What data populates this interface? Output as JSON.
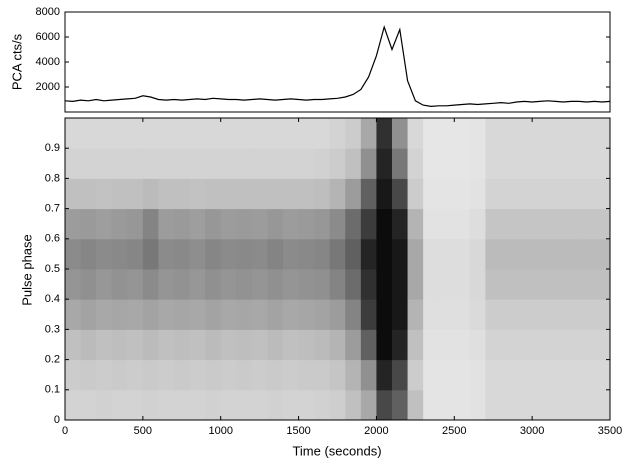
{
  "chart_data": [
    {
      "type": "line",
      "ylabel": "PCA cts/s",
      "color": "#000000",
      "x": [
        0,
        50,
        100,
        150,
        200,
        250,
        300,
        350,
        400,
        450,
        500,
        550,
        600,
        650,
        700,
        750,
        800,
        850,
        900,
        950,
        1000,
        1050,
        1100,
        1150,
        1200,
        1250,
        1300,
        1350,
        1400,
        1450,
        1500,
        1550,
        1600,
        1650,
        1700,
        1750,
        1800,
        1850,
        1900,
        1950,
        2000,
        2050,
        2100,
        2150,
        2200,
        2250,
        2300,
        2350,
        2400,
        2450,
        2500,
        2550,
        2600,
        2650,
        2700,
        2750,
        2800,
        2850,
        2900,
        2950,
        3000,
        3050,
        3100,
        3150,
        3200,
        3250,
        3300,
        3350,
        3400,
        3450,
        3500
      ],
      "values": [
        900,
        850,
        950,
        900,
        1000,
        900,
        950,
        1000,
        1050,
        1100,
        1300,
        1200,
        1000,
        950,
        1000,
        950,
        1000,
        1050,
        1000,
        1100,
        1050,
        1000,
        1000,
        950,
        1000,
        1050,
        1000,
        950,
        1000,
        1050,
        1000,
        950,
        1000,
        1000,
        1050,
        1100,
        1200,
        1400,
        1800,
        2800,
        4500,
        6800,
        5000,
        6600,
        2500,
        900,
        550,
        450,
        500,
        500,
        550,
        600,
        650,
        600,
        650,
        700,
        750,
        700,
        800,
        850,
        800,
        850,
        900,
        850,
        800,
        850,
        850,
        800,
        850,
        800,
        850
      ],
      "xlim": [
        0,
        3500
      ],
      "ylim": [
        0,
        8000
      ],
      "yticks": [
        2000,
        4000,
        6000,
        8000
      ]
    },
    {
      "type": "heatmap",
      "xlabel": "Time (seconds)",
      "ylabel": "Pulse phase",
      "time_bins": [
        0,
        100,
        200,
        300,
        400,
        500,
        600,
        700,
        800,
        900,
        1000,
        1100,
        1200,
        1300,
        1400,
        1500,
        1600,
        1700,
        1800,
        1900,
        2000,
        2100,
        2200,
        2300,
        2400,
        2500,
        2600,
        2700,
        2800,
        2900,
        3000,
        3100,
        3200,
        3300,
        3400,
        3500
      ],
      "phase_bins": [
        0,
        0.1,
        0.2,
        0.3,
        0.4,
        0.5,
        0.6,
        0.7,
        0.8,
        0.9,
        1
      ],
      "z": [
        [
          0.12,
          0.15,
          0.2,
          0.3,
          0.38,
          0.42,
          0.35,
          0.2,
          0.12,
          0.1
        ],
        [
          0.12,
          0.16,
          0.22,
          0.32,
          0.4,
          0.44,
          0.36,
          0.2,
          0.12,
          0.1
        ],
        [
          0.13,
          0.15,
          0.2,
          0.3,
          0.37,
          0.42,
          0.34,
          0.19,
          0.12,
          0.1
        ],
        [
          0.12,
          0.16,
          0.21,
          0.31,
          0.39,
          0.43,
          0.36,
          0.2,
          0.12,
          0.1
        ],
        [
          0.12,
          0.15,
          0.2,
          0.3,
          0.38,
          0.44,
          0.37,
          0.2,
          0.12,
          0.1
        ],
        [
          0.13,
          0.16,
          0.22,
          0.32,
          0.42,
          0.5,
          0.45,
          0.22,
          0.12,
          0.1
        ],
        [
          0.12,
          0.15,
          0.2,
          0.3,
          0.38,
          0.42,
          0.35,
          0.2,
          0.12,
          0.1
        ],
        [
          0.12,
          0.16,
          0.21,
          0.31,
          0.39,
          0.43,
          0.36,
          0.2,
          0.12,
          0.1
        ],
        [
          0.12,
          0.15,
          0.2,
          0.3,
          0.37,
          0.41,
          0.34,
          0.19,
          0.12,
          0.1
        ],
        [
          0.13,
          0.16,
          0.22,
          0.32,
          0.4,
          0.44,
          0.37,
          0.2,
          0.12,
          0.1
        ],
        [
          0.12,
          0.15,
          0.2,
          0.3,
          0.38,
          0.42,
          0.35,
          0.2,
          0.12,
          0.1
        ],
        [
          0.12,
          0.16,
          0.21,
          0.31,
          0.39,
          0.43,
          0.36,
          0.2,
          0.12,
          0.1
        ],
        [
          0.12,
          0.15,
          0.2,
          0.3,
          0.38,
          0.42,
          0.35,
          0.2,
          0.12,
          0.1
        ],
        [
          0.13,
          0.16,
          0.22,
          0.32,
          0.4,
          0.45,
          0.37,
          0.2,
          0.12,
          0.1
        ],
        [
          0.12,
          0.15,
          0.2,
          0.3,
          0.38,
          0.42,
          0.35,
          0.2,
          0.12,
          0.1
        ],
        [
          0.12,
          0.16,
          0.21,
          0.31,
          0.39,
          0.43,
          0.36,
          0.2,
          0.12,
          0.1
        ],
        [
          0.13,
          0.16,
          0.22,
          0.32,
          0.4,
          0.44,
          0.37,
          0.21,
          0.13,
          0.1
        ],
        [
          0.14,
          0.18,
          0.25,
          0.35,
          0.45,
          0.5,
          0.42,
          0.25,
          0.15,
          0.12
        ],
        [
          0.2,
          0.25,
          0.35,
          0.45,
          0.55,
          0.6,
          0.55,
          0.35,
          0.2,
          0.15
        ],
        [
          0.3,
          0.4,
          0.6,
          0.75,
          0.8,
          0.85,
          0.75,
          0.6,
          0.4,
          0.3
        ],
        [
          0.7,
          0.85,
          0.95,
          0.95,
          0.95,
          0.95,
          0.95,
          0.9,
          0.85,
          0.8
        ],
        [
          0.6,
          0.7,
          0.85,
          0.9,
          0.9,
          0.9,
          0.85,
          0.7,
          0.5,
          0.4
        ],
        [
          0.2,
          0.15,
          0.2,
          0.25,
          0.3,
          0.3,
          0.25,
          0.15,
          0.12,
          0.1
        ],
        [
          0.05,
          0.05,
          0.06,
          0.07,
          0.08,
          0.08,
          0.06,
          0.05,
          0.04,
          0.04
        ],
        [
          0.05,
          0.05,
          0.06,
          0.07,
          0.08,
          0.08,
          0.06,
          0.05,
          0.04,
          0.04
        ],
        [
          0.05,
          0.05,
          0.06,
          0.07,
          0.08,
          0.08,
          0.06,
          0.05,
          0.04,
          0.04
        ],
        [
          0.06,
          0.06,
          0.07,
          0.09,
          0.1,
          0.1,
          0.08,
          0.06,
          0.05,
          0.05
        ],
        [
          0.1,
          0.1,
          0.12,
          0.15,
          0.2,
          0.22,
          0.18,
          0.12,
          0.1,
          0.1
        ],
        [
          0.1,
          0.1,
          0.12,
          0.15,
          0.2,
          0.22,
          0.18,
          0.12,
          0.1,
          0.1
        ],
        [
          0.1,
          0.1,
          0.12,
          0.15,
          0.2,
          0.22,
          0.18,
          0.12,
          0.1,
          0.1
        ],
        [
          0.1,
          0.1,
          0.12,
          0.15,
          0.2,
          0.22,
          0.18,
          0.12,
          0.1,
          0.1
        ],
        [
          0.1,
          0.1,
          0.12,
          0.15,
          0.2,
          0.22,
          0.18,
          0.12,
          0.1,
          0.1
        ],
        [
          0.1,
          0.1,
          0.12,
          0.15,
          0.2,
          0.22,
          0.18,
          0.12,
          0.1,
          0.1
        ],
        [
          0.1,
          0.1,
          0.12,
          0.15,
          0.2,
          0.22,
          0.18,
          0.12,
          0.1,
          0.1
        ],
        [
          0.1,
          0.1,
          0.12,
          0.15,
          0.2,
          0.22,
          0.18,
          0.12,
          0.1,
          0.1
        ]
      ],
      "xlim": [
        0,
        3500
      ],
      "xticks": [
        0,
        500,
        1000,
        1500,
        2000,
        2500,
        3000,
        3500
      ],
      "ylim": [
        0,
        1
      ],
      "yticks": [
        0,
        0.1,
        0.2,
        0.3,
        0.4,
        0.5,
        0.6,
        0.7,
        0.8,
        0.9
      ]
    }
  ]
}
